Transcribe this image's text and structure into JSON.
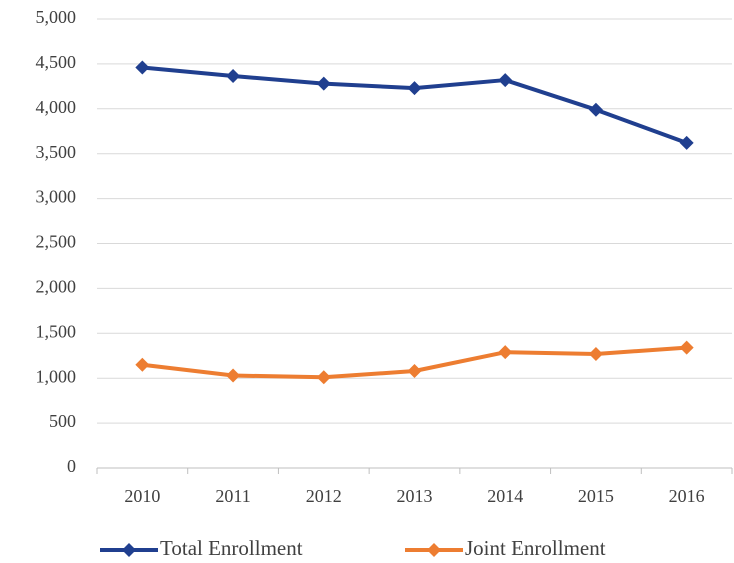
{
  "chart_data": {
    "type": "line",
    "categories": [
      "2010",
      "2011",
      "2012",
      "2013",
      "2014",
      "2015",
      "2016"
    ],
    "series": [
      {
        "name": "Total Enrollment",
        "color": "#203f8f",
        "values": [
          4460,
          4365,
          4280,
          4230,
          4320,
          3990,
          3620
        ]
      },
      {
        "name": "Joint Enrollment",
        "color": "#ed7d31",
        "values": [
          1150,
          1030,
          1010,
          1080,
          1290,
          1270,
          1340
        ]
      }
    ],
    "ylim": [
      0,
      5000
    ],
    "yticks": [
      0,
      500,
      {
        "value": 1000,
        "label": "1,000"
      },
      {
        "value": 1500,
        "label": "1,500"
      },
      {
        "value": 2000,
        "label": "2,000"
      },
      {
        "value": 2500,
        "label": "2,500"
      },
      {
        "value": 3000,
        "label": "3,000"
      },
      {
        "value": 3500,
        "label": "3,500"
      },
      {
        "value": 4000,
        "label": "4,000"
      },
      {
        "value": 4500,
        "label": "4,500"
      },
      {
        "value": 5000,
        "label": "5,000"
      }
    ],
    "grid": true,
    "legend": "bottom"
  }
}
